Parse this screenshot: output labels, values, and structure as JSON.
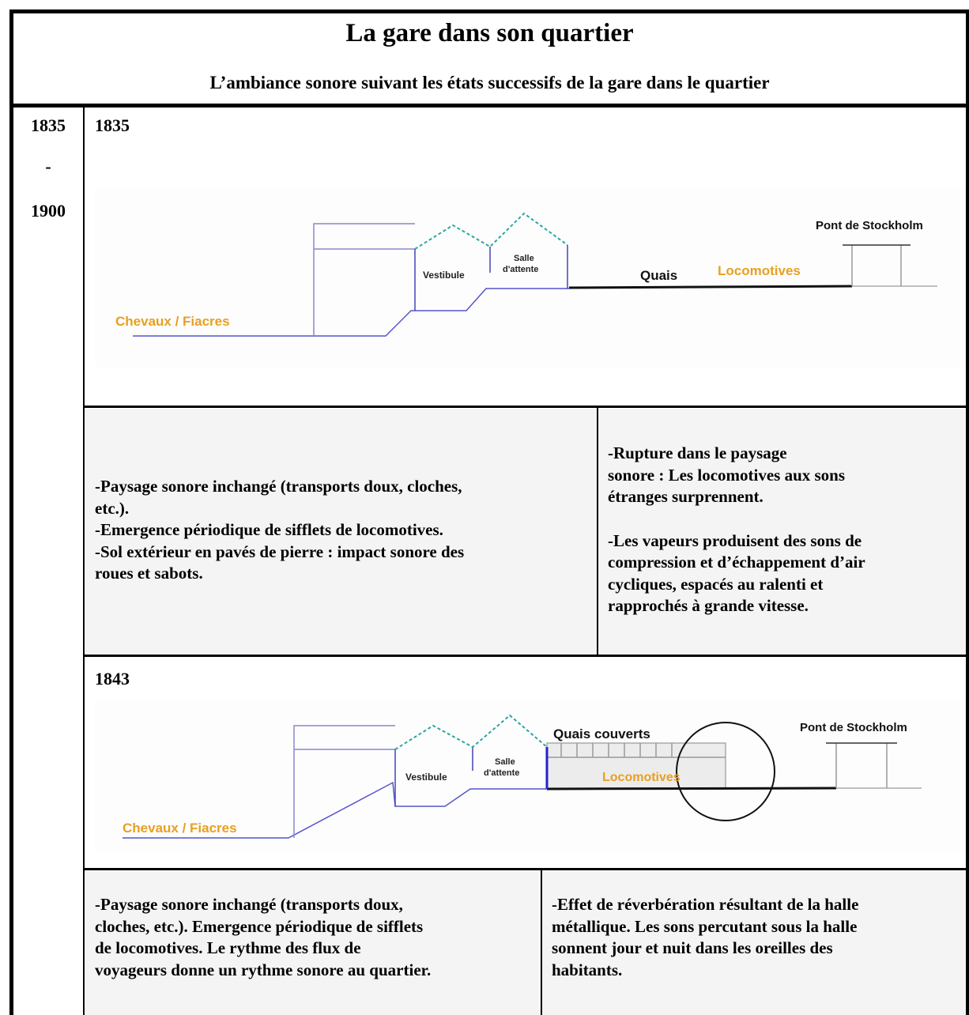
{
  "header": {
    "title": "La gare dans son quartier",
    "subtitle": "L’ambiance sonore suivant les états successifs de la gare dans le quartier"
  },
  "period": {
    "start": "1835",
    "dash": "-",
    "end": "1900"
  },
  "sections": [
    {
      "year": "1835",
      "diagram": {
        "horses": "Chevaux / Fiacres",
        "vestibule": "Vestibule",
        "waiting_room": [
          "Salle",
          "d'attente"
        ],
        "platforms": "Quais",
        "locomotives": "Locomotives",
        "bridge": "Pont de Stockholm"
      },
      "notes": {
        "left": [
          "-Paysage sonore inchangé (transports doux, cloches,",
          "etc.).",
          "-Emergence périodique de sifflets de locomotives.",
          "-Sol extérieur en pavés de pierre : impact sonore des",
          "roues et sabots."
        ],
        "right": [
          [
            "-Rupture dans le paysage",
            "sonore : Les locomotives aux sons",
            "étranges surprennent."
          ],
          [
            "-Les vapeurs produisent des sons de",
            "compression et d’échappement d’air",
            "cycliques, espacés au ralenti et",
            "rapprochés à grande vitesse."
          ]
        ]
      }
    },
    {
      "year": "1843",
      "diagram": {
        "horses": "Chevaux / Fiacres",
        "vestibule": "Vestibule",
        "waiting_room": [
          "Salle",
          "d'attente"
        ],
        "platforms": "Quais couverts",
        "locomotives": "Locomotives",
        "bridge": "Pont de Stockholm"
      },
      "notes": {
        "left": [
          "-Paysage sonore inchangé (transports doux,",
          "cloches, etc.). Emergence périodique de sifflets",
          "de locomotives. Le rythme des flux de",
          "voyageurs donne un rythme sonore au quartier."
        ],
        "right": [
          [
            "-Effet de réverbération résultant de la halle",
            "métallique. Les sons percutant sous la halle",
            "sonnent jour et nuit dans les oreilles des",
            "habitants."
          ]
        ]
      }
    }
  ]
}
